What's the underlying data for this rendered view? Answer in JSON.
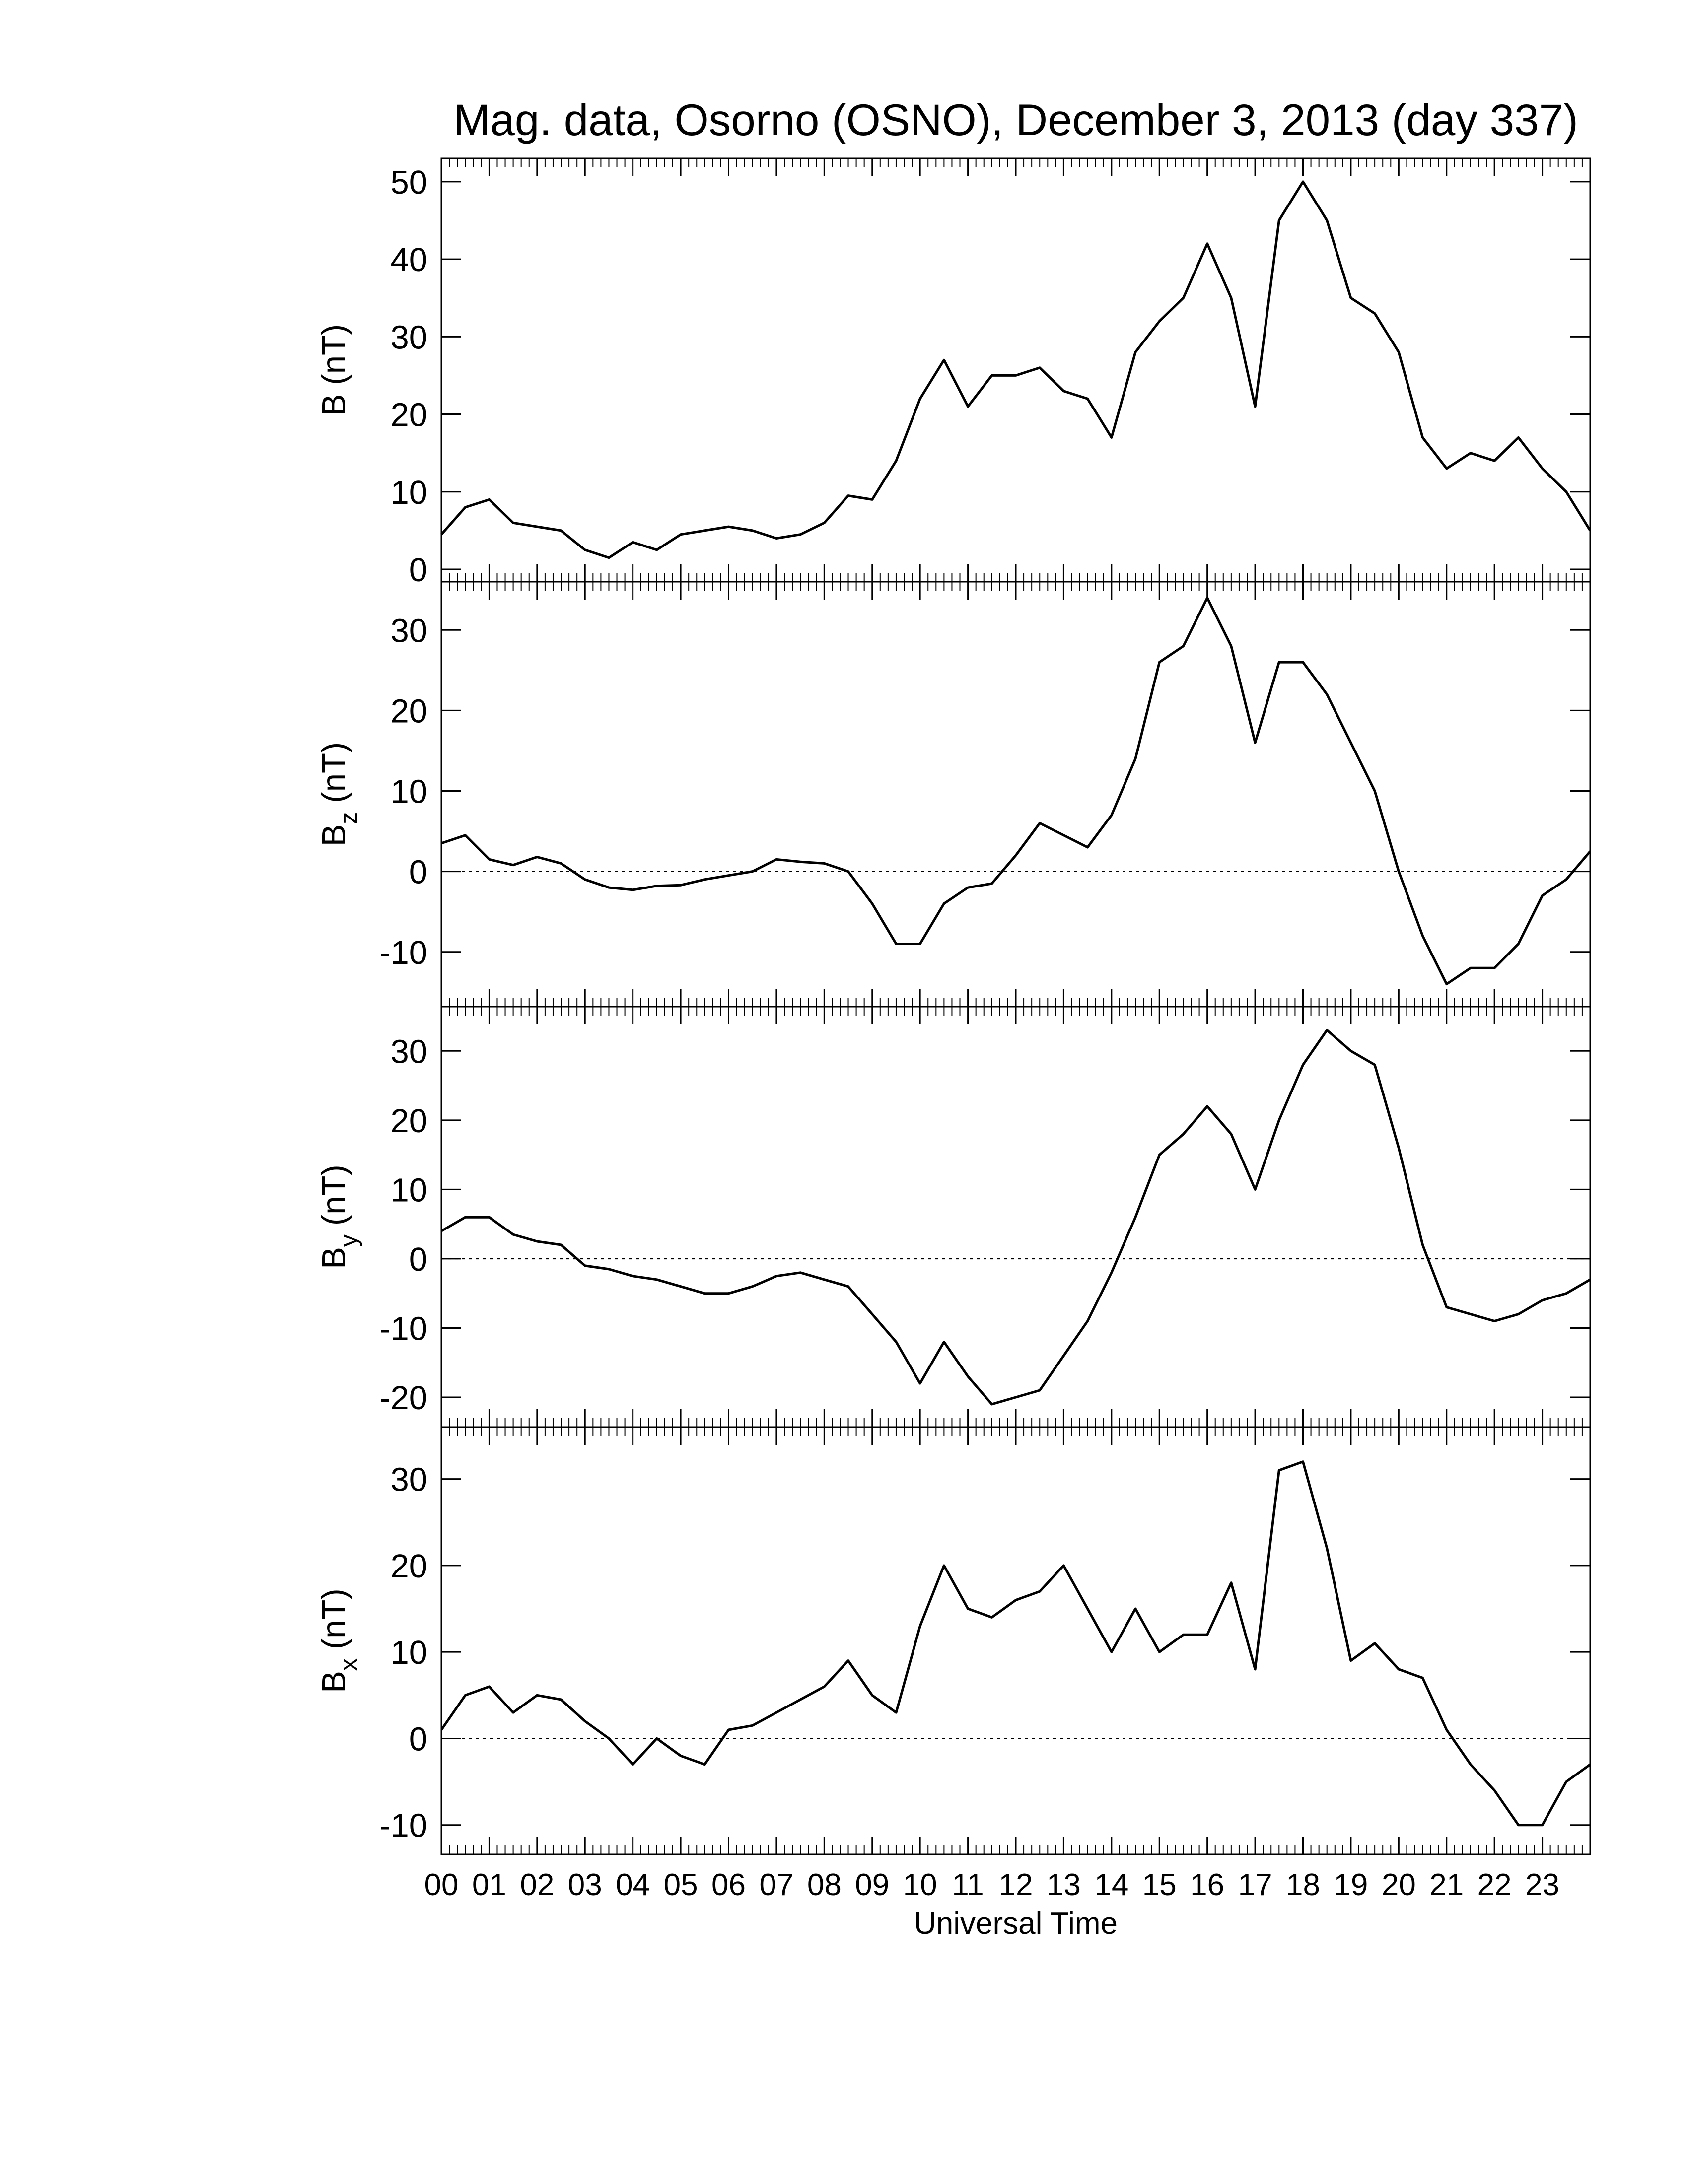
{
  "chart_data": [
    {
      "type": "line",
      "title": "Mag. data, Osorno (OSNO), December 3, 2013 (day 337)",
      "ylabel": {
        "base": "B",
        "unit": "(nT)"
      },
      "x": [
        0,
        0.5,
        1,
        1.5,
        2,
        2.5,
        3,
        3.5,
        4,
        4.5,
        5,
        5.5,
        6,
        6.5,
        7,
        7.5,
        8,
        8.5,
        9,
        9.5,
        10,
        10.5,
        11,
        11.5,
        12,
        12.5,
        13,
        13.5,
        14,
        14.5,
        15,
        15.5,
        16,
        16.5,
        17,
        17.5,
        18,
        18.5,
        19,
        19.5,
        20,
        20.5,
        21,
        21.5,
        22,
        22.5,
        23,
        23.5,
        24
      ],
      "series": [
        {
          "color": "#000000",
          "values": [
            4.5,
            8,
            9,
            6,
            5.5,
            5,
            2.5,
            1.5,
            3.5,
            2.5,
            4.5,
            5,
            5.5,
            5,
            4,
            4.5,
            6,
            9.5,
            9,
            14,
            22,
            27,
            21,
            25,
            25,
            26,
            23,
            22,
            17,
            28,
            32,
            35,
            42,
            35,
            21,
            45,
            50,
            45,
            35,
            33,
            28,
            17,
            13,
            15,
            14,
            17,
            13,
            10,
            5
          ]
        }
      ],
      "xlim": [
        0,
        24
      ],
      "ylim": [
        -1.6,
        53
      ],
      "yticks": [
        0,
        10,
        20,
        30,
        40,
        50
      ],
      "zero_line": false
    },
    {
      "type": "line",
      "ylabel": {
        "base": "B",
        "sub": "z",
        "unit": "(nT)"
      },
      "x": [
        0,
        0.5,
        1,
        1.5,
        2,
        2.5,
        3,
        3.5,
        4,
        4.5,
        5,
        5.5,
        6,
        6.5,
        7,
        7.5,
        8,
        8.5,
        9,
        9.5,
        10,
        10.5,
        11,
        11.5,
        12,
        12.5,
        13,
        13.5,
        14,
        14.5,
        15,
        15.5,
        16,
        16.5,
        17,
        17.5,
        18,
        18.5,
        19,
        19.5,
        20,
        20.5,
        21,
        21.5,
        22,
        22.5,
        23,
        23.5,
        24
      ],
      "series": [
        {
          "color": "#000000",
          "values": [
            3.5,
            4.5,
            1.5,
            0.8,
            1.8,
            1,
            -1,
            -2,
            -2.3,
            -1.8,
            -1.7,
            -1,
            -0.5,
            0,
            1.5,
            1.2,
            1,
            0,
            -4,
            -9,
            -9,
            -4,
            -2,
            -1.5,
            2,
            6,
            4.5,
            3,
            7,
            14,
            26,
            28,
            34,
            28,
            16,
            26,
            26,
            22,
            16,
            10,
            0,
            -8,
            -14,
            -12,
            -12,
            -9,
            -3,
            -1,
            2.5
          ]
        }
      ],
      "xlim": [
        0,
        24
      ],
      "ylim": [
        -16.8,
        36
      ],
      "yticks": [
        -10,
        0,
        10,
        20,
        30
      ],
      "zero_line": true
    },
    {
      "type": "line",
      "ylabel": {
        "base": "B",
        "sub": "y",
        "unit": "(nT)"
      },
      "x": [
        0,
        0.5,
        1,
        1.5,
        2,
        2.5,
        3,
        3.5,
        4,
        4.5,
        5,
        5.5,
        6,
        6.5,
        7,
        7.5,
        8,
        8.5,
        9,
        9.5,
        10,
        10.5,
        11,
        11.5,
        12,
        12.5,
        13,
        13.5,
        14,
        14.5,
        15,
        15.5,
        16,
        16.5,
        17,
        17.5,
        18,
        18.5,
        19,
        19.5,
        20,
        20.5,
        21,
        21.5,
        22,
        22.5,
        23,
        23.5,
        24
      ],
      "series": [
        {
          "color": "#000000",
          "values": [
            4,
            6,
            6,
            3.5,
            2.5,
            2,
            -1,
            -1.5,
            -2.5,
            -3,
            -4,
            -5,
            -5,
            -4,
            -2.5,
            -2,
            -3,
            -4,
            -8,
            -12,
            -18,
            -12,
            -17,
            -21,
            -20,
            -19,
            -14,
            -9,
            -2,
            6,
            15,
            18,
            22,
            18,
            10,
            20,
            28,
            33,
            30,
            28,
            16,
            2,
            -7,
            -8,
            -9,
            -8,
            -6,
            -5,
            -3
          ]
        }
      ],
      "xlim": [
        0,
        24
      ],
      "ylim": [
        -24.3,
        36.4
      ],
      "yticks": [
        -20,
        -10,
        0,
        10,
        20,
        30
      ],
      "zero_line": true
    },
    {
      "type": "line",
      "ylabel": {
        "base": "B",
        "sub": "x",
        "unit": "(nT)"
      },
      "xlabel": "Universal Time",
      "x": [
        0,
        0.5,
        1,
        1.5,
        2,
        2.5,
        3,
        3.5,
        4,
        4.5,
        5,
        5.5,
        6,
        6.5,
        7,
        7.5,
        8,
        8.5,
        9,
        9.5,
        10,
        10.5,
        11,
        11.5,
        12,
        12.5,
        13,
        13.5,
        14,
        14.5,
        15,
        15.5,
        16,
        16.5,
        17,
        17.5,
        18,
        18.5,
        19,
        19.5,
        20,
        20.5,
        21,
        21.5,
        22,
        22.5,
        23,
        23.5,
        24
      ],
      "series": [
        {
          "color": "#000000",
          "values": [
            1,
            5,
            6,
            3,
            5,
            4.5,
            2,
            0,
            -3,
            0,
            -2,
            -3,
            1,
            1.5,
            3,
            4.5,
            6,
            9,
            5,
            3,
            13,
            20,
            15,
            14,
            16,
            17,
            20,
            15,
            10,
            15,
            10,
            12,
            12,
            18,
            8,
            31,
            32,
            22,
            9,
            11,
            8,
            7,
            1,
            -3,
            -6,
            -10,
            -10,
            -5,
            -3
          ]
        }
      ],
      "xlim": [
        0,
        24
      ],
      "ylim": [
        -13.4,
        36
      ],
      "yticks": [
        -10,
        0,
        10,
        20,
        30
      ],
      "zero_line": true,
      "xticks": [
        {
          "value": 0,
          "label": "00"
        },
        {
          "value": 1,
          "label": "01"
        },
        {
          "value": 2,
          "label": "02"
        },
        {
          "value": 3,
          "label": "03"
        },
        {
          "value": 4,
          "label": "04"
        },
        {
          "value": 5,
          "label": "05"
        },
        {
          "value": 6,
          "label": "06"
        },
        {
          "value": 7,
          "label": "07"
        },
        {
          "value": 8,
          "label": "08"
        },
        {
          "value": 9,
          "label": "09"
        },
        {
          "value": 10,
          "label": "10"
        },
        {
          "value": 11,
          "label": "11"
        },
        {
          "value": 12,
          "label": "12"
        },
        {
          "value": 13,
          "label": "13"
        },
        {
          "value": 14,
          "label": "14"
        },
        {
          "value": 15,
          "label": "15"
        },
        {
          "value": 16,
          "label": "16"
        },
        {
          "value": 17,
          "label": "17"
        },
        {
          "value": 18,
          "label": "18"
        },
        {
          "value": 19,
          "label": "19"
        },
        {
          "value": 20,
          "label": "20"
        },
        {
          "value": 21,
          "label": "21"
        },
        {
          "value": 22,
          "label": "22"
        },
        {
          "value": 23,
          "label": "23"
        }
      ]
    }
  ]
}
